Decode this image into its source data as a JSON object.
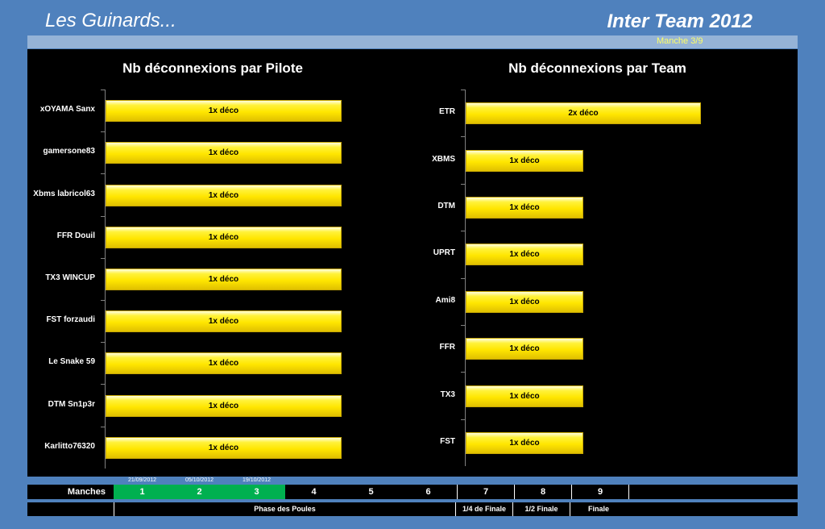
{
  "header": {
    "brand": "Les Guinards...",
    "title": "Inter Team 2012",
    "round": "Manche 3/9"
  },
  "chart_data": [
    {
      "type": "bar",
      "orientation": "horizontal",
      "title": "Nb déconnexions par Pilote",
      "categories": [
        "xOYAMA Sanx",
        "gamersone83",
        "Xbms labricol63",
        "FFR Douil",
        "TX3 WINCUP",
        "FST forzaudi",
        "Le Snake 59",
        "DTM Sn1p3r",
        "Karlitto76320"
      ],
      "values": [
        1,
        1,
        1,
        1,
        1,
        1,
        1,
        1,
        1
      ],
      "data_labels": [
        "1x déco",
        "1x déco",
        "1x déco",
        "1x déco",
        "1x déco",
        "1x déco",
        "1x déco",
        "1x déco",
        "1x déco"
      ],
      "xlim": [
        0,
        1
      ],
      "bar_color": "#ffe600"
    },
    {
      "type": "bar",
      "orientation": "horizontal",
      "title": "Nb déconnexions par Team",
      "categories": [
        "ETR",
        "XBMS",
        "DTM",
        "UPRT",
        "Ami8",
        "FFR",
        "TX3",
        "FST"
      ],
      "values": [
        2,
        1,
        1,
        1,
        1,
        1,
        1,
        1
      ],
      "data_labels": [
        "2x déco",
        "1x déco",
        "1x déco",
        "1x déco",
        "1x déco",
        "1x déco",
        "1x déco",
        "1x déco"
      ],
      "xlim": [
        0,
        2
      ],
      "bar_color": "#ffe600"
    }
  ],
  "schedule": {
    "label": "Manches",
    "rounds": [
      {
        "num": "1",
        "date": "21/09/2012",
        "done": true
      },
      {
        "num": "2",
        "date": "05/10/2012",
        "done": true
      },
      {
        "num": "3",
        "date": "19/10/2012",
        "done": true
      },
      {
        "num": "4",
        "date": "",
        "done": false
      },
      {
        "num": "5",
        "date": "",
        "done": false
      },
      {
        "num": "6",
        "date": "",
        "done": false
      },
      {
        "num": "7",
        "date": "",
        "done": false
      },
      {
        "num": "8",
        "date": "",
        "done": false
      },
      {
        "num": "9",
        "date": "",
        "done": false
      }
    ],
    "phases": [
      "Phase des Poules",
      "1/4 de Finale",
      "1/2 Finale",
      "Finale"
    ]
  },
  "colors": {
    "background": "#4f81bd",
    "panel": "#000000",
    "done": "#00b050"
  }
}
